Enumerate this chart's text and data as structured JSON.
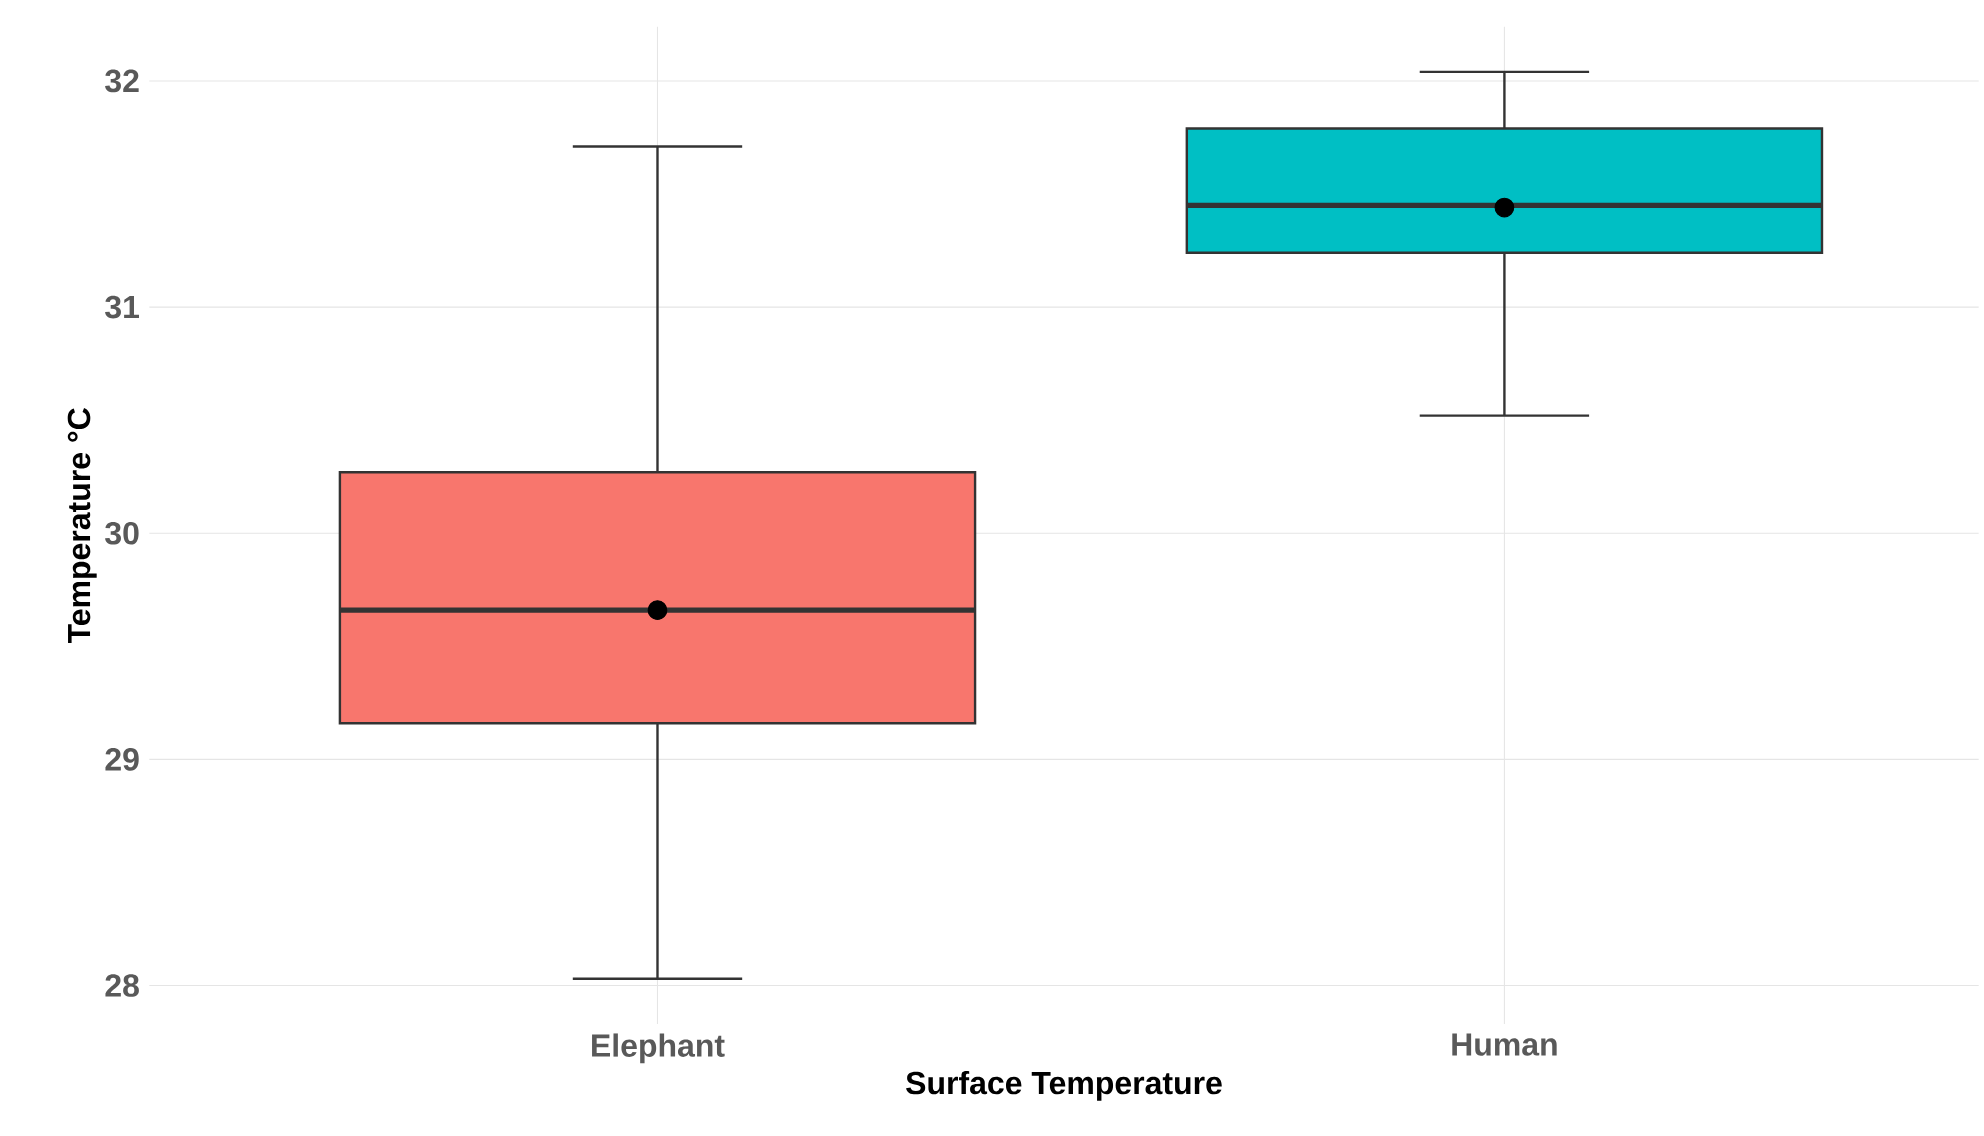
{
  "chart_data": {
    "type": "box",
    "xlabel": "Surface Temperature",
    "ylabel": "Temperature °C",
    "categories": [
      "Elephant",
      "Human"
    ],
    "colors": [
      "#f8766d",
      "#00bfc4"
    ],
    "boxes": [
      {
        "low": 28.03,
        "q1": 29.16,
        "median": 29.66,
        "q3": 30.27,
        "high": 31.71,
        "mean": 29.66
      },
      {
        "low": 30.52,
        "q1": 31.24,
        "median": 31.45,
        "q3": 31.79,
        "high": 32.04,
        "mean": 31.44
      }
    ],
    "ylim": [
      27.83,
      32.24
    ],
    "yticks": [
      28,
      29,
      30,
      31,
      32
    ],
    "grid": true
  }
}
